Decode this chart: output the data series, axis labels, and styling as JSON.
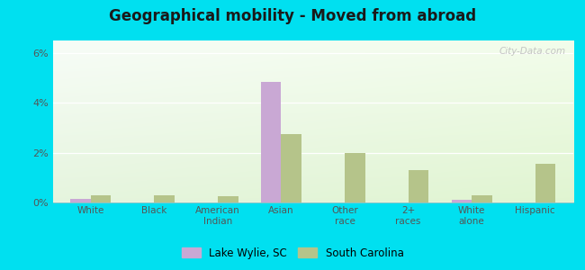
{
  "title": "Geographical mobility - Moved from abroad",
  "categories": [
    "White",
    "Black",
    "American\nIndian",
    "Asian",
    "Other\nrace",
    "2+\nraces",
    "White\nalone",
    "Hispanic"
  ],
  "lake_wylie": [
    0.15,
    0.0,
    0.0,
    4.85,
    0.0,
    0.0,
    0.12,
    0.0
  ],
  "south_carolina": [
    0.3,
    0.3,
    0.25,
    2.75,
    2.0,
    1.3,
    0.3,
    1.55
  ],
  "bar_color_lw": "#c9a8d4",
  "bar_color_sc": "#b5c48a",
  "ylim_max": 6.5,
  "ytick_vals": [
    0,
    2,
    4,
    6
  ],
  "ytick_labels": [
    "0%",
    "2%",
    "4%",
    "6%"
  ],
  "bg_color_outer": "#00e0f0",
  "legend_lw": "Lake Wylie, SC",
  "legend_sc": "South Carolina",
  "watermark": "City-Data.com"
}
